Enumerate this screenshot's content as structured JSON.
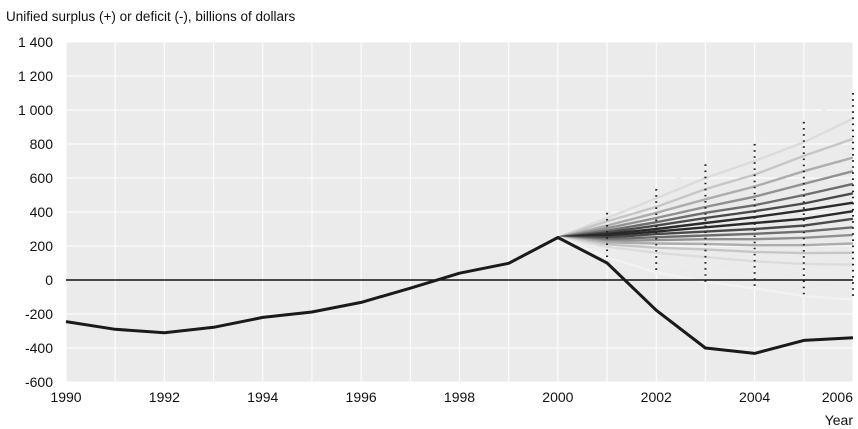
{
  "chart_data": {
    "type": "line",
    "title": "",
    "ylabel": "Unified surplus (+) or deficit (-), billions of dollars",
    "xlabel": "Year",
    "xlim": [
      1990,
      2006
    ],
    "ylim": [
      -600,
      1400
    ],
    "x_ticks": [
      "1990",
      "1992",
      "1994",
      "1996",
      "1998",
      "2000",
      "2002",
      "2004",
      "2006"
    ],
    "y_ticks": [
      "1 400",
      "1 200",
      "1 000",
      "800",
      "600",
      "400",
      "200",
      "0",
      "-200",
      "-400",
      "-600"
    ],
    "grid": true,
    "series": [
      {
        "kind": "actual",
        "color": "#1a1a1a",
        "x": [
          1990,
          1991,
          1992,
          1993,
          1994,
          1995,
          1996,
          1997,
          1998,
          1999,
          2000,
          2001,
          2002,
          2003,
          2004,
          2005,
          2006
        ],
        "values": [
          -245,
          -290,
          -310,
          -278,
          -220,
          -188,
          -132,
          -48,
          40,
          98,
          250,
          100,
          -178,
          -400,
          -432,
          -355,
          -340
        ]
      }
    ],
    "projection_fan": {
      "x": [
        2000,
        2001,
        2002,
        2003,
        2004,
        2005,
        2006
      ],
      "bands": [
        {
          "color": "#ececec",
          "values": [
            250,
            395,
            535,
            680,
            800,
            930,
            1100
          ]
        },
        {
          "color": "#dcdcdc",
          "values": [
            250,
            365,
            480,
            600,
            700,
            810,
            950
          ]
        },
        {
          "color": "#c6c6c6",
          "values": [
            250,
            345,
            430,
            535,
            620,
            730,
            830
          ]
        },
        {
          "color": "#adadad",
          "values": [
            250,
            320,
            395,
            475,
            550,
            640,
            720
          ]
        },
        {
          "color": "#919191",
          "values": [
            250,
            305,
            365,
            430,
            490,
            565,
            640
          ]
        },
        {
          "color": "#6e6e6e",
          "values": [
            250,
            290,
            340,
            395,
            440,
            500,
            565
          ]
        },
        {
          "color": "#4a4a4a",
          "values": [
            250,
            280,
            320,
            365,
            405,
            450,
            510
          ]
        },
        {
          "color": "#2a2a2a",
          "values": [
            250,
            270,
            300,
            335,
            370,
            410,
            455
          ]
        },
        {
          "color": "#2a2a2a",
          "values": [
            250,
            260,
            285,
            310,
            335,
            360,
            405
          ]
        },
        {
          "color": "#4a4a4a",
          "values": [
            250,
            250,
            270,
            285,
            300,
            320,
            360
          ]
        },
        {
          "color": "#6e6e6e",
          "values": [
            250,
            240,
            252,
            262,
            272,
            285,
            310
          ]
        },
        {
          "color": "#919191",
          "values": [
            250,
            230,
            235,
            240,
            240,
            248,
            265
          ]
        },
        {
          "color": "#adadad",
          "values": [
            250,
            222,
            215,
            212,
            205,
            205,
            215
          ]
        },
        {
          "color": "#c6c6c6",
          "values": [
            250,
            210,
            190,
            180,
            165,
            158,
            160
          ]
        },
        {
          "color": "#dcdcdc",
          "values": [
            250,
            195,
            160,
            135,
            110,
            95,
            90
          ]
        },
        {
          "color": "#ececec",
          "values": [
            250,
            170,
            110,
            70,
            30,
            0,
            -20
          ]
        },
        {
          "color": "#f2f2f2",
          "values": [
            250,
            135,
            45,
            -10,
            -50,
            -95,
            -115
          ]
        }
      ]
    }
  }
}
